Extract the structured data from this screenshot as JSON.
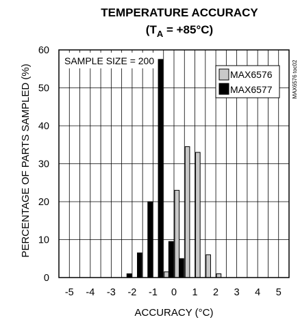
{
  "chart_data": {
    "type": "bar",
    "title": "TEMPERATURE ACCURACY",
    "subtitle": {
      "prefix": "(T",
      "subscript": "A",
      "suffix": " = +85°C)"
    },
    "xlabel": "ACCURACY (°C)",
    "ylabel": "PERCENTAGE OF PARTS SAMPLED (%)",
    "xlim": [
      -5.5,
      5.5
    ],
    "ylim": [
      0,
      60
    ],
    "xticks": [
      -5,
      -4,
      -3,
      -2,
      -1,
      0,
      1,
      2,
      3,
      4,
      5
    ],
    "yticks": [
      0,
      10,
      20,
      30,
      40,
      50,
      60
    ],
    "grid": true,
    "annotation": "SAMPLE SIZE = 200",
    "figure_code": "MAX6576 toc02",
    "legend_position": "top-right",
    "series": [
      {
        "name": "MAX6576",
        "color": "#c8c8c8",
        "x": [
          -1.0,
          -0.5,
          0.0,
          0.5,
          1.0,
          1.5,
          2.0
        ],
        "values": [
          0,
          1.5,
          23,
          34.5,
          33,
          6,
          1
        ]
      },
      {
        "name": "MAX6577",
        "color": "#000000",
        "x": [
          -2.0,
          -1.5,
          -1.0,
          -0.5,
          0.0,
          0.5
        ],
        "values": [
          1,
          6.5,
          20,
          57.5,
          9.5,
          5
        ]
      }
    ]
  }
}
